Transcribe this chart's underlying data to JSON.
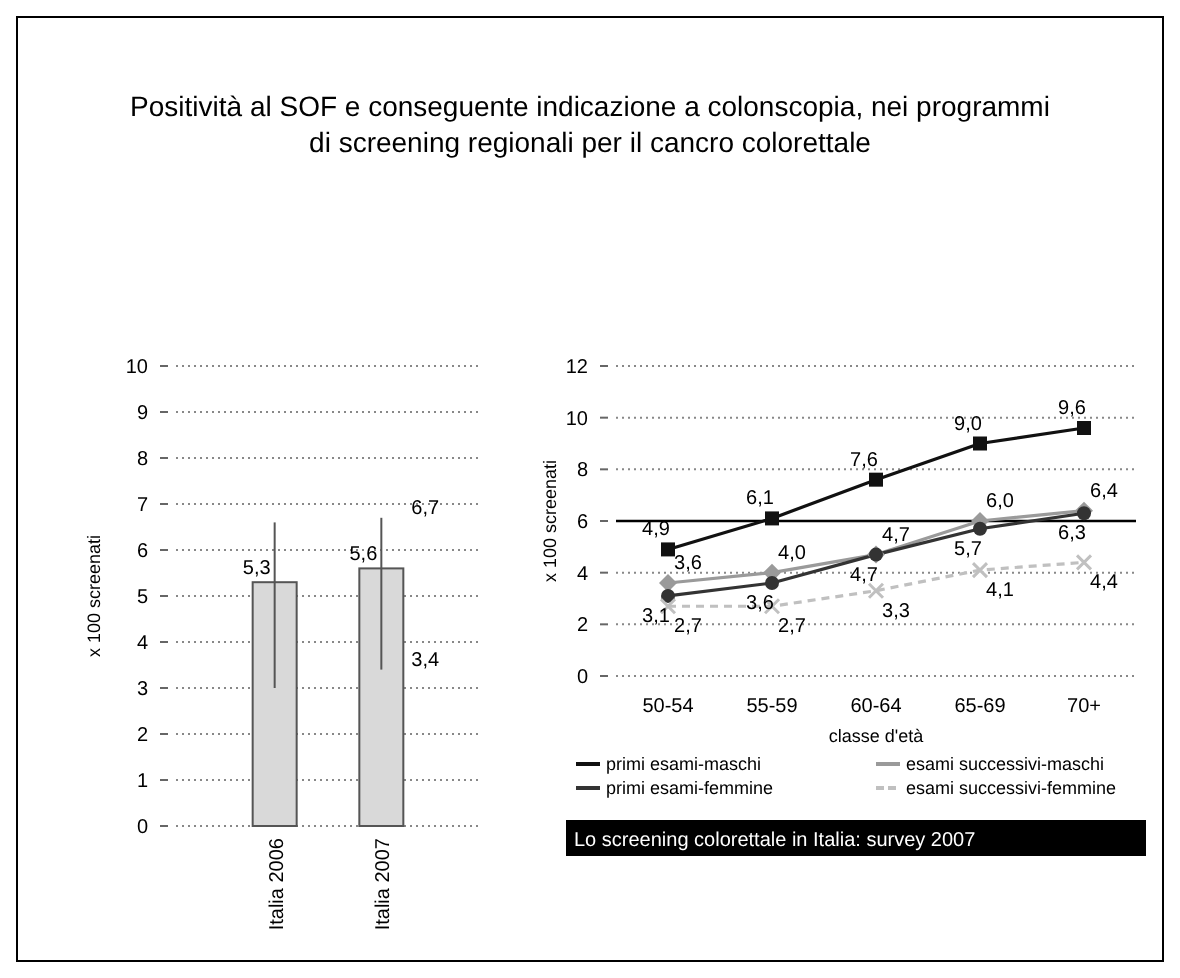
{
  "chart_data": [
    {
      "type": "bar",
      "title": "Positività al SOF e conseguente indicazione a colonscopia, nei programmi di screening regionali per il cancro colorettale",
      "ylabel": "x 100 screenati",
      "categories": [
        "Italia 2006",
        "Italia 2007"
      ],
      "values": [
        5.3,
        5.6
      ],
      "value_labels": [
        "5,3",
        "5,6"
      ],
      "color": "#d9d9d9",
      "errors": [
        [
          3.0,
          6.6
        ],
        [
          3.4,
          6.7
        ]
      ],
      "annotations": [
        {
          "text": "6,7",
          "x": "Italia 2007",
          "y": 6.7
        },
        {
          "text": "3,4",
          "x": "Italia 2007",
          "y": 3.4
        }
      ],
      "ylim": [
        0,
        10
      ],
      "yticks": [
        0,
        1,
        2,
        3,
        4,
        5,
        6,
        7,
        8,
        9,
        10
      ],
      "grid": "y"
    },
    {
      "type": "line",
      "xlabel": "classe d'età",
      "ylabel": "x 100 screenati",
      "categories": [
        "50-54",
        "55-59",
        "60-64",
        "65-69",
        "70+"
      ],
      "series": [
        {
          "name": "primi esami-maschi",
          "color": "#111111",
          "values": [
            4.9,
            6.1,
            7.6,
            9.0,
            9.6
          ],
          "value_labels": [
            "4,9",
            "6,1",
            "7,6",
            "9,0",
            "9,6"
          ],
          "marker": "square",
          "line_style": "solid"
        },
        {
          "name": "esami successivi-maschi",
          "color": "#9a9a9a",
          "values": [
            3.6,
            4.0,
            4.7,
            6.0,
            6.4
          ],
          "value_labels": [
            "3,6",
            "4,0",
            "4,7",
            "6,0",
            "6,4"
          ],
          "marker": "diamond",
          "line_style": "solid"
        },
        {
          "name": "primi esami-femmine",
          "color": "#333333",
          "values": [
            3.1,
            3.6,
            4.7,
            5.7,
            6.3
          ],
          "value_labels": [
            "3,1",
            "3,6",
            "4,7",
            "5,7",
            "6,3"
          ],
          "marker": "circle",
          "line_style": "solid"
        },
        {
          "name": "esami successivi-femmine",
          "color": "#c0c0c0",
          "values": [
            2.7,
            2.7,
            3.3,
            4.1,
            4.4
          ],
          "value_labels": [
            "2,7",
            "2,7",
            "3,3",
            "4,1",
            "4,4"
          ],
          "marker": "cross",
          "line_style": "dashed"
        }
      ],
      "ref_lines": [
        {
          "axis": "y",
          "value": 6,
          "color": "#000000"
        }
      ],
      "annotations": [
        "Lo screening colorettale in Italia: survey 2007"
      ],
      "ylim": [
        0,
        12
      ],
      "yticks": [
        0,
        2,
        4,
        6,
        8,
        10,
        12
      ],
      "grid": "y",
      "legend": "bottom"
    }
  ]
}
